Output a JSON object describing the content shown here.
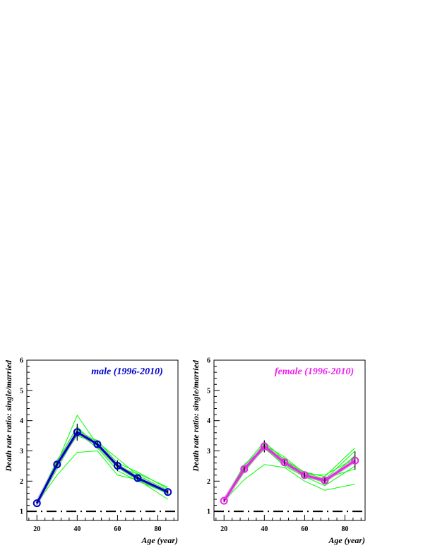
{
  "chart_data": [
    {
      "type": "line",
      "title": "male (1996-2010)",
      "xlabel": "Age (year)",
      "ylabel": "Death rate ratio: single/married",
      "xlim": [
        15,
        90
      ],
      "ylim": [
        0.7,
        6.0
      ],
      "xticks": [
        20,
        40,
        60,
        80
      ],
      "xtick_labels": [
        "20",
        "40",
        "60",
        "80"
      ],
      "yticks": [
        1,
        2,
        3,
        4,
        5,
        6
      ],
      "ytick_labels": [
        "1",
        "2",
        "3",
        "4",
        "5",
        "6"
      ],
      "reference_line": 1,
      "grid": false,
      "colors": {
        "main": "#0000cc",
        "bands": "#00ff00",
        "reference": "#000000"
      },
      "x": [
        20,
        30,
        40,
        50,
        60,
        70,
        85
      ],
      "series": [
        {
          "role": "mean",
          "values": [
            1.27,
            2.55,
            3.62,
            3.22,
            2.51,
            2.1,
            1.64
          ],
          "errors": [
            0.05,
            0.12,
            0.28,
            0.1,
            0.18,
            0.1,
            0.07
          ]
        },
        {
          "role": "yearly",
          "values": [
            1.27,
            2.6,
            4.18,
            3.2,
            2.45,
            2.05,
            1.6
          ]
        },
        {
          "role": "yearly",
          "values": [
            1.27,
            2.5,
            3.7,
            3.3,
            2.75,
            2.2,
            1.7
          ]
        },
        {
          "role": "yearly",
          "values": [
            1.27,
            2.2,
            2.95,
            3.0,
            2.2,
            2.05,
            1.4
          ]
        },
        {
          "role": "yearly",
          "values": [
            1.27,
            2.7,
            3.55,
            3.35,
            2.6,
            2.3,
            1.75
          ]
        },
        {
          "role": "yearly",
          "values": [
            1.27,
            2.4,
            3.6,
            3.1,
            2.35,
            2.0,
            1.6
          ]
        },
        {
          "role": "yearly",
          "values": [
            1.27,
            2.55,
            3.5,
            3.25,
            2.55,
            2.15,
            1.55
          ]
        },
        {
          "role": "yearly",
          "values": [
            1.27,
            2.65,
            3.8,
            3.15,
            2.45,
            2.25,
            1.8
          ]
        }
      ]
    },
    {
      "type": "line",
      "title": "female (1996-2010)",
      "xlabel": "Age (year)",
      "ylabel": "Death rate ratio: single/married",
      "xlim": [
        15,
        90
      ],
      "ylim": [
        0.7,
        6.0
      ],
      "xticks": [
        20,
        40,
        60,
        80
      ],
      "xtick_labels": [
        "20",
        "40",
        "60",
        "80"
      ],
      "yticks": [
        1,
        2,
        3,
        4,
        5,
        6
      ],
      "ytick_labels": [
        "1",
        "2",
        "3",
        "4",
        "5",
        "6"
      ],
      "reference_line": 1,
      "grid": false,
      "colors": {
        "main": "#ee22ee",
        "bands": "#00ff00",
        "reference": "#000000"
      },
      "x": [
        20,
        30,
        40,
        50,
        60,
        70,
        85
      ],
      "series": [
        {
          "role": "mean",
          "values": [
            1.35,
            2.4,
            3.15,
            2.62,
            2.2,
            2.02,
            2.68
          ],
          "errors": [
            0.05,
            0.08,
            0.2,
            0.12,
            0.08,
            0.12,
            0.3
          ]
        },
        {
          "role": "yearly",
          "values": [
            1.35,
            2.5,
            3.3,
            2.7,
            2.3,
            2.15,
            3.1
          ]
        },
        {
          "role": "yearly",
          "values": [
            1.35,
            2.05,
            2.55,
            2.45,
            2.0,
            1.7,
            1.9
          ]
        },
        {
          "role": "yearly",
          "values": [
            1.35,
            2.4,
            3.2,
            2.8,
            2.25,
            2.2,
            2.75
          ]
        },
        {
          "role": "yearly",
          "values": [
            1.35,
            2.55,
            3.1,
            2.5,
            2.15,
            1.85,
            2.5
          ]
        },
        {
          "role": "yearly",
          "values": [
            1.35,
            2.35,
            3.25,
            2.6,
            2.3,
            2.05,
            3.0
          ]
        },
        {
          "role": "yearly",
          "values": [
            1.35,
            2.45,
            3.05,
            2.75,
            2.1,
            2.1,
            2.4
          ]
        },
        {
          "role": "yearly",
          "values": [
            1.35,
            2.3,
            3.15,
            2.55,
            2.2,
            1.95,
            2.85
          ]
        }
      ]
    }
  ]
}
